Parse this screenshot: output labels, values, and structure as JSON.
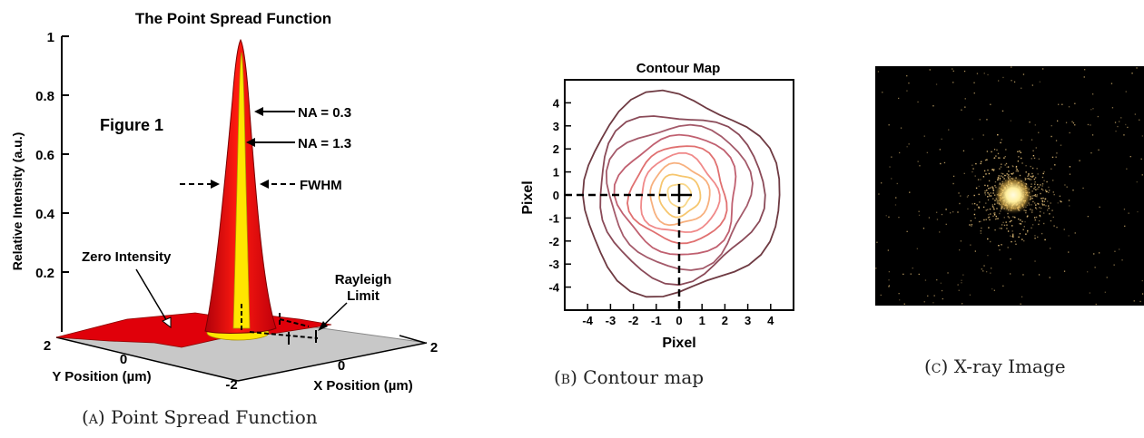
{
  "panel_a": {
    "title": "The Point Spread Function",
    "ylabel": "Relative Intensity (a.u.)",
    "y_ticks": [
      "1",
      "0.8",
      "0.6",
      "0.4",
      "0.2"
    ],
    "figure_label": "Figure 1",
    "na_low": "NA = 0.3",
    "na_high": "NA = 1.3",
    "fwhm": "FWHM",
    "zero_intensity": "Zero Intensity",
    "rayleigh_line1": "Rayleigh",
    "rayleigh_line2": "Limit",
    "y_pos_label": "Y Position (µm)",
    "x_pos_label": "X Position (µm)",
    "y_tick_2": "2",
    "y_tick_0": "0",
    "x_tick_neg2": "-2",
    "x_tick_0": "0",
    "x_tick_2": "2",
    "caption_letter": "(a)",
    "caption_text": "Point Spread Function",
    "colors": {
      "outer_peak": "#e0000a",
      "inner_peak": "#ffe600",
      "floor": "#c8c8c8"
    }
  },
  "panel_b": {
    "title": "Contour Map",
    "xlabel": "Pixel",
    "ylabel": "Pixel",
    "x_ticks": [
      "-4",
      "-3",
      "-2",
      "-1",
      "0",
      "1",
      "2",
      "3",
      "4"
    ],
    "y_ticks": [
      "4",
      "3",
      "2",
      "1",
      "0",
      "-1",
      "-2",
      "-3",
      "-4"
    ],
    "caption_letter": "(b)",
    "caption_text": "Contour map"
  },
  "panel_c": {
    "caption_letter": "(c)",
    "caption_text": "X-ray Image",
    "colors": {
      "background": "#000000",
      "photons": "#e8c27a",
      "core": "#fff6c0"
    }
  },
  "chart_data": [
    {
      "type": "contour",
      "title": "Contour Map",
      "xlabel": "Pixel",
      "ylabel": "Pixel",
      "xlim": [
        -5,
        5
      ],
      "ylim": [
        -5,
        5
      ],
      "levels_radii": [
        0.5,
        0.9,
        1.3,
        1.7,
        2.1,
        2.6,
        3.1,
        3.6,
        4.3
      ],
      "level_colors": [
        "#f8d78a",
        "#f6c66e",
        "#f7b07e",
        "#f08a8a",
        "#e07070",
        "#c06070",
        "#a45a6a",
        "#8a4a58",
        "#6e3a42"
      ],
      "marker": {
        "x": 0,
        "y": 0
      }
    }
  ]
}
